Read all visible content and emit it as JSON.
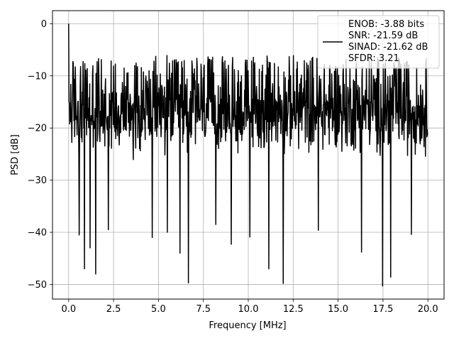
{
  "chart_data": {
    "type": "line",
    "xlabel": "Frequency [MHz]",
    "ylabel": "PSD [dB]",
    "xlim": [
      -0.9,
      20.9
    ],
    "ylim": [
      -52.8,
      2.5
    ],
    "grid": true,
    "legend_position": "top-right",
    "x_ticks": [
      0.0,
      2.5,
      5.0,
      7.5,
      10.0,
      12.5,
      15.0,
      17.5,
      20.0
    ],
    "x_tick_labels": [
      "0.0",
      "2.5",
      "5.0",
      "7.5",
      "10.0",
      "12.5",
      "15.0",
      "17.5",
      "20.0"
    ],
    "y_ticks": [
      0,
      -10,
      -20,
      -30,
      -40,
      -50
    ],
    "y_tick_labels": [
      "0",
      "−10",
      "−20",
      "−30",
      "−40",
      "−50"
    ],
    "series": [
      {
        "name": "ENOB: -3.88 bits\nSNR: -21.59 dB\nSINAD: -21.62 dB\nSFDR: 3.21",
        "color": "#000000",
        "x_start": 0.0,
        "x_end": 20.0,
        "points": 1024,
        "peak": {
          "x": 0.0,
          "y": 0.0
        },
        "noise_mean": -20,
        "noise_band": [
          -28,
          -8.5
        ],
        "deep_dips": [
          {
            "x": 0.58,
            "y": -40.5
          },
          {
            "x": 0.87,
            "y": -47.0
          },
          {
            "x": 1.19,
            "y": -43.0
          },
          {
            "x": 1.5,
            "y": -48.0
          },
          {
            "x": 2.2,
            "y": -39.5
          },
          {
            "x": 2.2,
            "y": -39.5
          },
          {
            "x": 4.65,
            "y": -41.0
          },
          {
            "x": 5.5,
            "y": -40.0
          },
          {
            "x": 6.2,
            "y": -44.0
          },
          {
            "x": 6.66,
            "y": -49.7
          },
          {
            "x": 8.2,
            "y": -38.5
          },
          {
            "x": 9.05,
            "y": -42.3
          },
          {
            "x": 10.08,
            "y": -40.9
          },
          {
            "x": 11.15,
            "y": -47.0
          },
          {
            "x": 11.95,
            "y": -49.8
          },
          {
            "x": 13.9,
            "y": -39.6
          },
          {
            "x": 16.3,
            "y": -43.8
          },
          {
            "x": 17.48,
            "y": -50.3
          },
          {
            "x": 17.92,
            "y": -48.6
          },
          {
            "x": 19.08,
            "y": -40.4
          }
        ]
      }
    ]
  },
  "legend": {
    "lines": [
      "ENOB: -3.88 bits",
      "SNR: -21.59 dB",
      "SINAD: -21.62 dB",
      "SFDR: 3.21"
    ]
  },
  "colors": {
    "line": "#000000",
    "grid": "#b0b0b0",
    "axes": "#000000",
    "background": "#ffffff"
  }
}
